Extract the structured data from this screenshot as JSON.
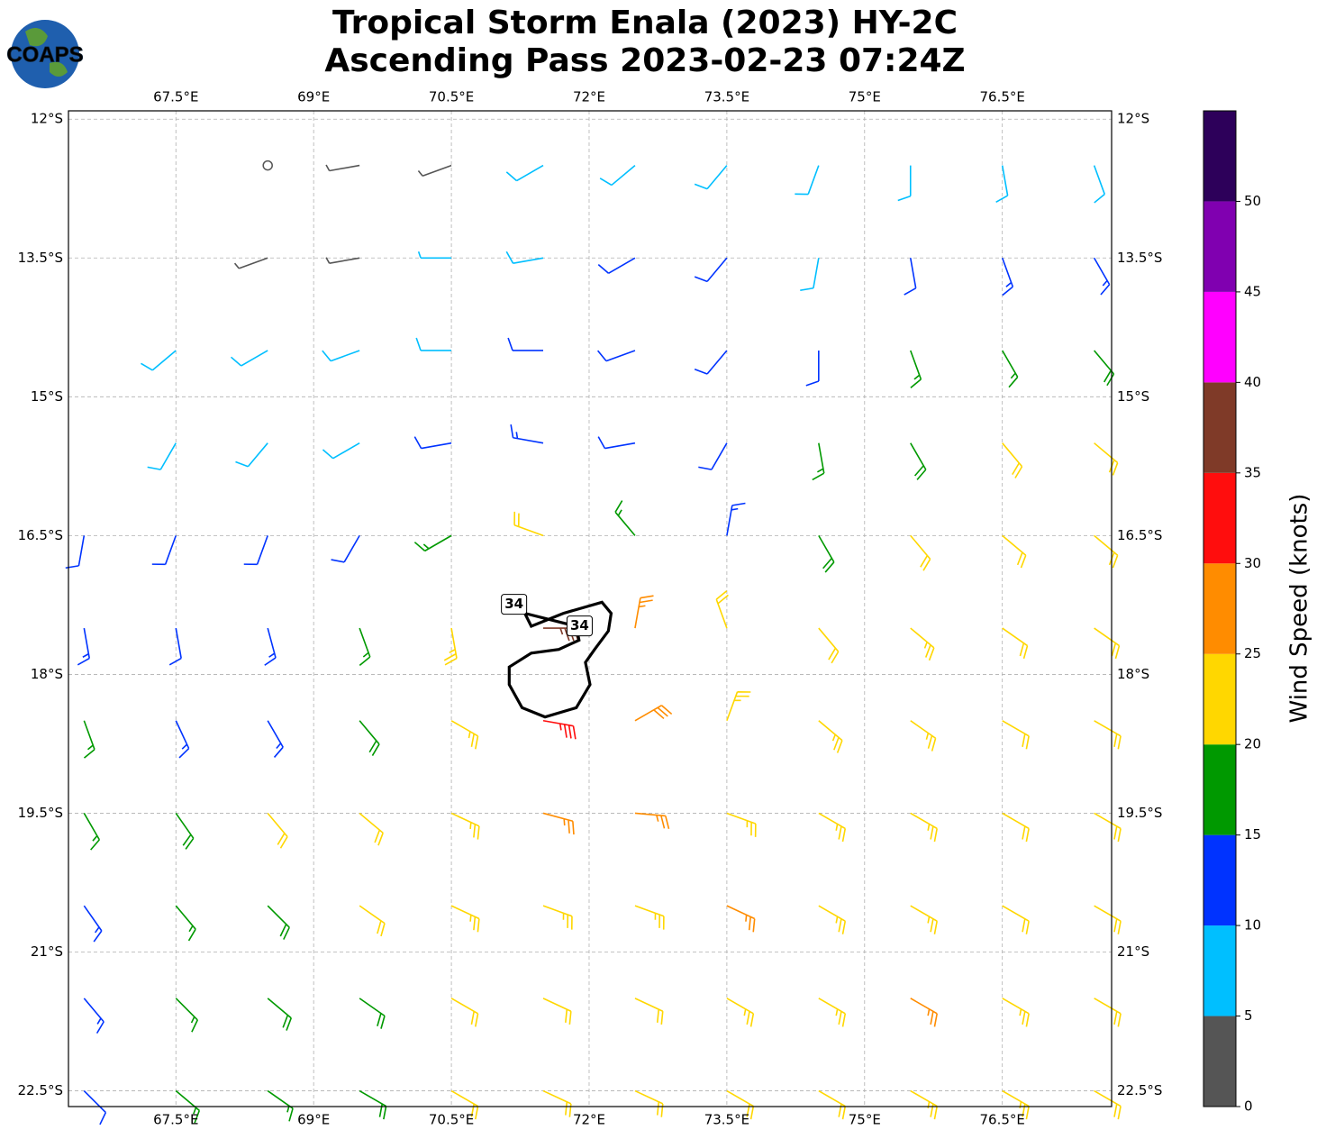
{
  "chart_data": {
    "type": "barbs",
    "title": "Tropical Storm Enala (2023) HY-2C",
    "subtitle": "Ascending Pass 2023-02-23 07:24Z",
    "logo_text": "COAPS",
    "xlim": [
      66.33,
      77.69
    ],
    "ylim": [
      -22.67,
      -11.91
    ],
    "grid": true,
    "xticks": [
      {
        "value": 67.5,
        "label": "67.5°E"
      },
      {
        "value": 69,
        "label": "69°E"
      },
      {
        "value": 70.5,
        "label": "70.5°E"
      },
      {
        "value": 72,
        "label": "72°E"
      },
      {
        "value": 73.5,
        "label": "73.5°E"
      },
      {
        "value": 75,
        "label": "75°E"
      },
      {
        "value": 76.5,
        "label": "76.5°E"
      }
    ],
    "yticks": [
      {
        "value": -12,
        "label": "12°S"
      },
      {
        "value": -13.5,
        "label": "13.5°S"
      },
      {
        "value": -15,
        "label": "15°S"
      },
      {
        "value": -16.5,
        "label": "16.5°S"
      },
      {
        "value": -18,
        "label": "18°S"
      },
      {
        "value": -19.5,
        "label": "19.5°S"
      },
      {
        "value": -21,
        "label": "21°S"
      },
      {
        "value": -22.5,
        "label": "22.5°S"
      }
    ],
    "lons": [
      66.5,
      67.5,
      68.5,
      69.5,
      70.5,
      71.5,
      72.5,
      73.5,
      74.5,
      75.5,
      76.5,
      77.5
    ],
    "lats": [
      -12.5,
      -13.5,
      -14.5,
      -15.5,
      -16.5,
      -17.5,
      -18.5,
      -19.5,
      -20.5,
      -21.5,
      -22.5
    ],
    "speed": [
      [
        null,
        null,
        2,
        3,
        4,
        8,
        8,
        8,
        9,
        8,
        9,
        9
      ],
      [
        null,
        null,
        3,
        4,
        7,
        9,
        11,
        12,
        9,
        11,
        13,
        14
      ],
      [
        null,
        8,
        8,
        8,
        9,
        12,
        12,
        12,
        12,
        15,
        17,
        18
      ],
      [
        null,
        9,
        9,
        9,
        11,
        13,
        12,
        12,
        16,
        19,
        21,
        22
      ],
      [
        11,
        11,
        12,
        12,
        16,
        22,
        17,
        13,
        18,
        21,
        22,
        22
      ],
      [
        13,
        12,
        13,
        15,
        23,
        36,
        27,
        21,
        22,
        23,
        22,
        22
      ],
      [
        17,
        14,
        14,
        18,
        24,
        33,
        28,
        24,
        23,
        23,
        22,
        21
      ],
      [
        17,
        18,
        21,
        21,
        24,
        27,
        26,
        24,
        23,
        23,
        22,
        21
      ],
      [
        14,
        17,
        19,
        22,
        23,
        23,
        24,
        25,
        23,
        23,
        22,
        20
      ],
      [
        13,
        16,
        18,
        19,
        21,
        22,
        21,
        23,
        24,
        26,
        23,
        21
      ],
      [
        12,
        15,
        17,
        18,
        20,
        21,
        20,
        21,
        22,
        23,
        23,
        22
      ]
    ],
    "direction": [
      [
        null,
        null,
        270,
        260,
        250,
        240,
        230,
        220,
        200,
        180,
        170,
        160
      ],
      [
        null,
        null,
        250,
        260,
        270,
        260,
        240,
        220,
        190,
        170,
        160,
        150
      ],
      [
        null,
        230,
        240,
        250,
        270,
        270,
        250,
        220,
        180,
        160,
        150,
        140
      ],
      [
        null,
        210,
        220,
        240,
        260,
        280,
        260,
        210,
        170,
        150,
        140,
        130
      ],
      [
        190,
        200,
        200,
        210,
        240,
        290,
        320,
        10,
        150,
        140,
        130,
        130
      ],
      [
        170,
        170,
        165,
        160,
        170,
        90,
        10,
        340,
        140,
        130,
        125,
        125
      ],
      [
        160,
        155,
        150,
        140,
        120,
        100,
        60,
        20,
        130,
        125,
        120,
        120
      ],
      [
        150,
        145,
        140,
        130,
        115,
        105,
        95,
        110,
        120,
        120,
        120,
        120
      ],
      [
        145,
        140,
        135,
        125,
        115,
        110,
        110,
        115,
        120,
        120,
        120,
        120
      ],
      [
        140,
        135,
        130,
        125,
        120,
        115,
        115,
        120,
        120,
        120,
        120,
        120
      ],
      [
        135,
        130,
        125,
        120,
        120,
        115,
        115,
        120,
        120,
        120,
        120,
        120
      ]
    ],
    "contour": {
      "level": 34,
      "lon": [
        71.3,
        71.37,
        71.72,
        72.14,
        72.24,
        72.21,
        72.06,
        71.96,
        72.01,
        71.86,
        71.52,
        71.27,
        71.13,
        71.13,
        71.37,
        71.67,
        71.89,
        71.86
      ],
      "lat": [
        -17.34,
        -17.48,
        -17.34,
        -17.22,
        -17.34,
        -17.53,
        -17.73,
        -17.87,
        -18.11,
        -18.36,
        -18.46,
        -18.36,
        -18.11,
        -17.92,
        -17.77,
        -17.73,
        -17.63,
        -17.48
      ]
    },
    "colorbar": {
      "label": "Wind Speed (knots)",
      "bounds": [
        0,
        5,
        10,
        15,
        20,
        25,
        30,
        35,
        40,
        45,
        50,
        55
      ],
      "colors": [
        "#555555",
        "#00bfff",
        "#0033ff",
        "#009900",
        "#ffd700",
        "#ff8c00",
        "#ff0d0d",
        "#7f3a28",
        "#ff00ff",
        "#8000b0",
        "#2d005a"
      ],
      "ticks": [
        0,
        5,
        10,
        15,
        20,
        25,
        30,
        35,
        40,
        45,
        50
      ]
    }
  }
}
